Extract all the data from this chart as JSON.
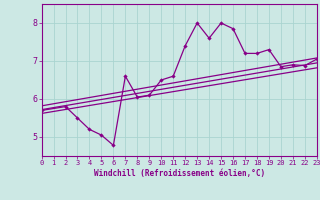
{
  "title": "",
  "xlabel": "Windchill (Refroidissement éolien,°C)",
  "ylabel": "",
  "bg_color": "#cce8e4",
  "line_color": "#880088",
  "xlim": [
    0,
    23
  ],
  "ylim": [
    4.5,
    8.5
  ],
  "xticks": [
    0,
    1,
    2,
    3,
    4,
    5,
    6,
    7,
    8,
    9,
    10,
    11,
    12,
    13,
    14,
    15,
    16,
    17,
    18,
    19,
    20,
    21,
    22,
    23
  ],
  "yticks": [
    5,
    6,
    7,
    8
  ],
  "data_line": [
    [
      0,
      5.7
    ],
    [
      2,
      5.8
    ],
    [
      3,
      5.5
    ],
    [
      4,
      5.2
    ],
    [
      5,
      5.05
    ],
    [
      6,
      4.78
    ],
    [
      7,
      6.6
    ],
    [
      8,
      6.05
    ],
    [
      9,
      6.1
    ],
    [
      10,
      6.5
    ],
    [
      11,
      6.6
    ],
    [
      12,
      7.4
    ],
    [
      13,
      8.0
    ],
    [
      14,
      7.6
    ],
    [
      15,
      8.0
    ],
    [
      16,
      7.85
    ],
    [
      17,
      7.2
    ],
    [
      18,
      7.2
    ],
    [
      19,
      7.3
    ],
    [
      20,
      6.85
    ],
    [
      21,
      6.9
    ],
    [
      22,
      6.88
    ],
    [
      23,
      7.05
    ]
  ],
  "regression_lines": [
    {
      "x": [
        0,
        23
      ],
      "y": [
        5.62,
        6.82
      ]
    },
    {
      "x": [
        0,
        23
      ],
      "y": [
        5.72,
        6.95
      ]
    },
    {
      "x": [
        0,
        23
      ],
      "y": [
        5.82,
        7.08
      ]
    }
  ],
  "grid_color": "#aad4d0"
}
